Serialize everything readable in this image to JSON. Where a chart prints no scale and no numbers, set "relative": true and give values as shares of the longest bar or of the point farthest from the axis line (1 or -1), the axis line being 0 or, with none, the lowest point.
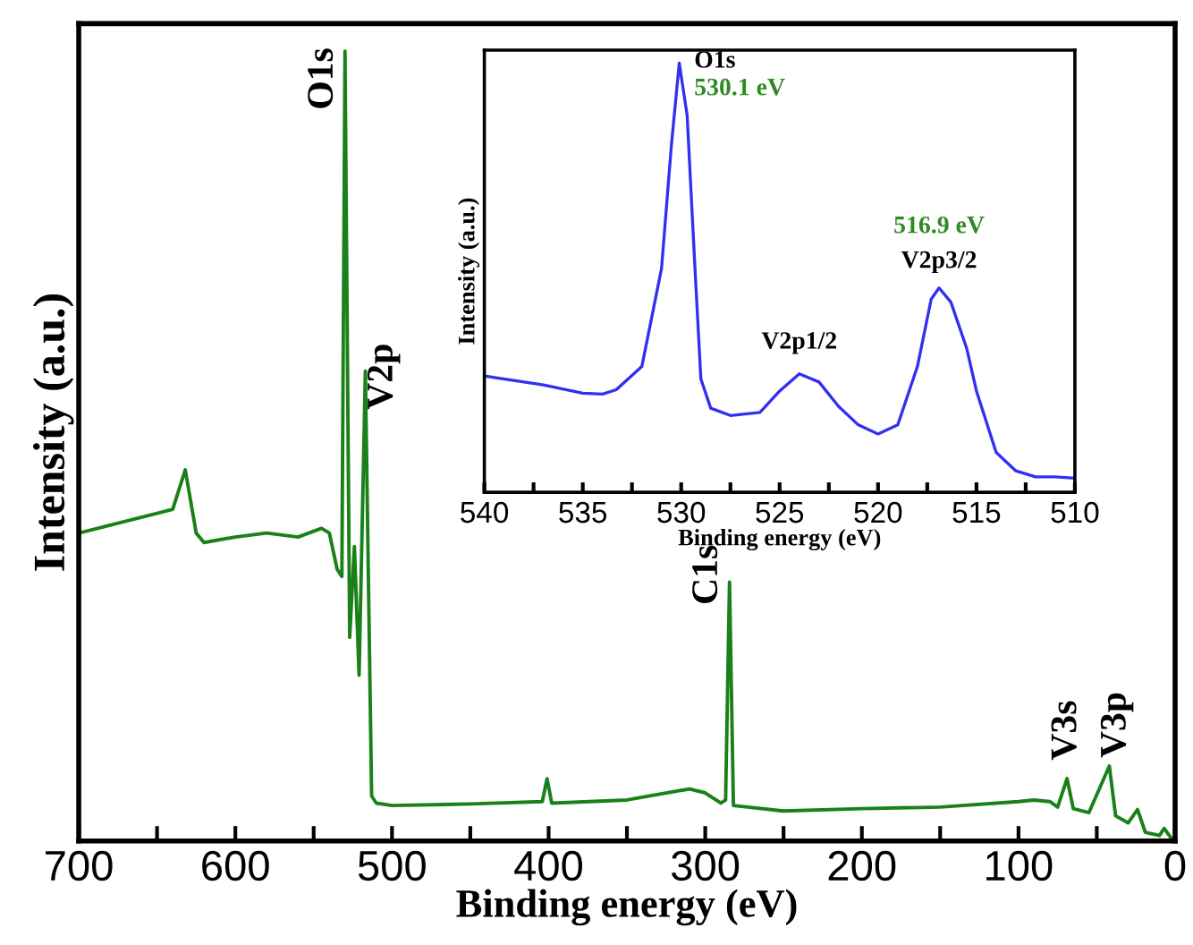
{
  "chart_data": [
    {
      "type": "line",
      "relative": true,
      "xlabel": "Binding energy (eV)",
      "ylabel": "Intensity (a.u.)",
      "xlim": [
        700,
        0
      ],
      "xticks": [
        700,
        {
          "value": 650,
          "label": null
        },
        600,
        {
          "value": 550,
          "label": null
        },
        500,
        {
          "value": 450,
          "label": null
        },
        400,
        {
          "value": 350,
          "label": null
        },
        300,
        {
          "value": 250,
          "label": null
        },
        200,
        {
          "value": 150,
          "label": null
        },
        100,
        {
          "value": 50,
          "label": null
        },
        0
      ],
      "tick_labels": "x",
      "series": [
        {
          "color": "#1a801a",
          "x": [
            700,
            680,
            650,
            640,
            632,
            625,
            620,
            600,
            580,
            560,
            545,
            540,
            535,
            532,
            530,
            527,
            524,
            521,
            517,
            513,
            510,
            500,
            450,
            404,
            401,
            398,
            350,
            310,
            300,
            290,
            287,
            284.5,
            282,
            250,
            200,
            150,
            100,
            90,
            80,
            75,
            69,
            65,
            55,
            42,
            38,
            30,
            24,
            19,
            10,
            7,
            3,
            0
          ],
          "values": [
            0.39,
            0.4,
            0.415,
            0.42,
            0.47,
            0.39,
            0.378,
            0.385,
            0.39,
            0.385,
            0.396,
            0.39,
            0.344,
            0.335,
            1.0,
            0.258,
            0.373,
            0.21,
            0.595,
            0.057,
            0.048,
            0.045,
            0.047,
            0.05,
            0.079,
            0.048,
            0.052,
            0.066,
            0.061,
            0.048,
            0.052,
            0.328,
            0.045,
            0.038,
            0.041,
            0.043,
            0.05,
            0.052,
            0.05,
            0.043,
            0.079,
            0.041,
            0.036,
            0.095,
            0.032,
            0.023,
            0.04,
            0.011,
            0.007,
            0.016,
            0.005,
            0.0
          ]
        }
      ],
      "annotations": [
        {
          "text": "O1s",
          "x": 530,
          "y": 1.0
        },
        {
          "text": "V2p",
          "x": 517,
          "y": 0.595
        },
        {
          "text": "C1s",
          "x": 284.5,
          "y": 0.328
        },
        {
          "text": "V3s",
          "x": 69,
          "y": 0.079
        },
        {
          "text": "V3p",
          "x": 42,
          "y": 0.095
        }
      ]
    },
    {
      "type": "line",
      "relative": true,
      "xlabel": "Binding energy (eV)",
      "ylabel": "Intensity (a.u.)",
      "xlim": [
        540,
        510
      ],
      "xticks": [
        540,
        {
          "value": 537.5,
          "label": null
        },
        535,
        {
          "value": 532.5,
          "label": null
        },
        530,
        {
          "value": 527.5,
          "label": null
        },
        525,
        {
          "value": 522.5,
          "label": null
        },
        520,
        {
          "value": 517.5,
          "label": null
        },
        515,
        {
          "value": 512.5,
          "label": null
        },
        510
      ],
      "tick_labels": "x",
      "series": [
        {
          "color": "#3030f0",
          "x": [
            540,
            537,
            535,
            534,
            533.3,
            532,
            531,
            530.5,
            530.1,
            529.7,
            529.3,
            529,
            528.5,
            527.5,
            526,
            525,
            524,
            523,
            522,
            521,
            520,
            519,
            518,
            517.3,
            516.9,
            516.3,
            515.5,
            515,
            514,
            513,
            512,
            511,
            510
          ],
          "values": [
            0.271,
            0.25,
            0.231,
            0.229,
            0.239,
            0.293,
            0.521,
            0.807,
            1.0,
            0.879,
            0.521,
            0.264,
            0.196,
            0.179,
            0.186,
            0.236,
            0.276,
            0.257,
            0.2,
            0.157,
            0.136,
            0.157,
            0.293,
            0.45,
            0.476,
            0.443,
            0.336,
            0.236,
            0.093,
            0.05,
            0.036,
            0.036,
            0.033
          ]
        }
      ],
      "annotations": [
        {
          "text": "O1s",
          "x": 530.1,
          "y": 1.0
        },
        {
          "text": "530.1 eV",
          "x": 530.1,
          "y": 1.0
        },
        {
          "text": "V2p1/2",
          "x": 524,
          "y": 0.276
        },
        {
          "text": "516.9 eV",
          "x": 516.9,
          "y": 0.476
        },
        {
          "text": "V2p3/2",
          "x": 516.9,
          "y": 0.476
        }
      ]
    }
  ]
}
